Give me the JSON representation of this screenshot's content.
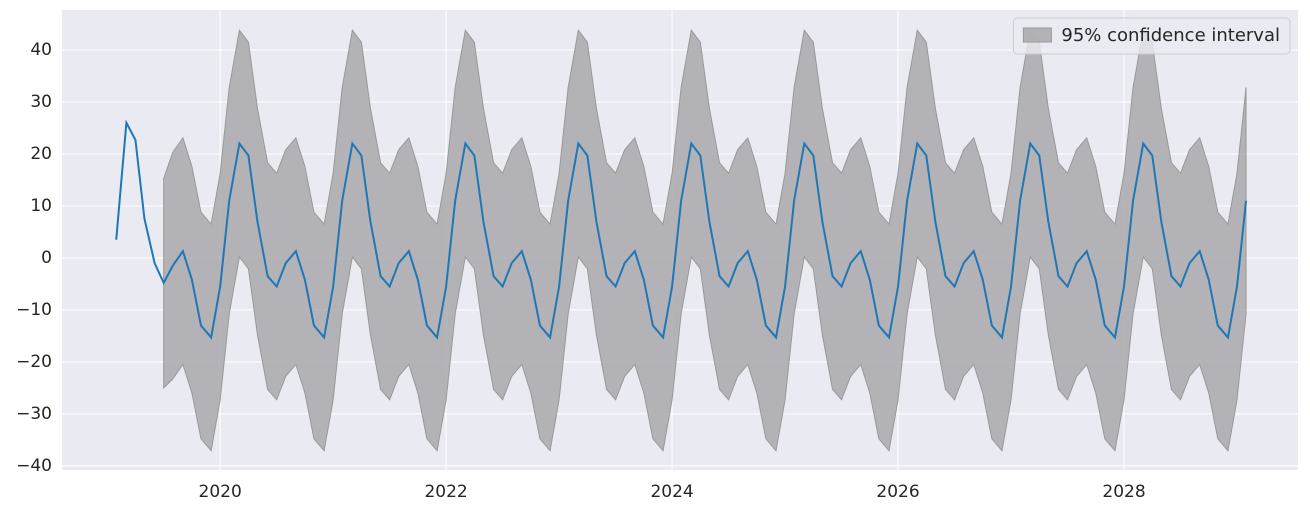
{
  "chart_data": {
    "type": "line",
    "x": [
      2019.08,
      2019.17,
      2019.25,
      2019.33,
      2019.42,
      2019.5,
      2019.58,
      2019.67,
      2019.75,
      2019.83,
      2019.92,
      2020,
      2020.08,
      2020.17,
      2020.25,
      2020.33,
      2020.42,
      2020.5,
      2020.58,
      2020.67,
      2020.75,
      2020.83,
      2020.92,
      2021,
      2021.08,
      2021.17,
      2021.25,
      2021.33,
      2021.42,
      2021.5,
      2021.58,
      2021.67,
      2021.75,
      2021.83,
      2021.92,
      2022,
      2022.08,
      2022.17,
      2022.25,
      2022.33,
      2022.42,
      2022.5,
      2022.58,
      2022.67,
      2022.75,
      2022.83,
      2022.92,
      2023,
      2023.08,
      2023.17,
      2023.25,
      2023.33,
      2023.42,
      2023.5,
      2023.58,
      2023.67,
      2023.75,
      2023.83,
      2023.92,
      2024,
      2024.08,
      2024.17,
      2024.25,
      2024.33,
      2024.42,
      2024.5,
      2024.58,
      2024.67,
      2024.75,
      2024.83,
      2024.92,
      2025,
      2025.08,
      2025.17,
      2025.25,
      2025.33,
      2025.42,
      2025.5,
      2025.58,
      2025.67,
      2025.75,
      2025.83,
      2025.92,
      2026,
      2026.08,
      2026.17,
      2026.25,
      2026.33,
      2026.42,
      2026.5,
      2026.58,
      2026.67,
      2026.75,
      2026.83,
      2026.92,
      2027,
      2027.08,
      2027.17,
      2027.25,
      2027.33,
      2027.42,
      2027.5,
      2027.58,
      2027.67,
      2027.75,
      2027.83,
      2027.92,
      2028,
      2028.08,
      2028.17,
      2028.25,
      2028.33,
      2028.42,
      2028.5,
      2028.58,
      2028.67,
      2028.75,
      2028.83,
      2028.92,
      2029,
      2029.08
    ],
    "values": [
      3.5,
      26,
      22.7,
      7.5,
      -1,
      -4.8,
      -1.5,
      1.3,
      -4.2,
      -13,
      -15.3,
      -5.5,
      11,
      22,
      19.7,
      7,
      -3.5,
      -5.5,
      -1,
      1.3,
      -4.2,
      -13,
      -15.3,
      -5.5,
      11,
      22,
      19.7,
      7,
      -3.5,
      -5.5,
      -1,
      1.3,
      -4.2,
      -13,
      -15.3,
      -5.5,
      11,
      22,
      19.7,
      7,
      -3.5,
      -5.5,
      -1,
      1.3,
      -4.2,
      -13,
      -15.3,
      -5.5,
      11,
      22,
      19.7,
      7,
      -3.5,
      -5.5,
      -1,
      1.3,
      -4.2,
      -13,
      -15.3,
      -5.5,
      11,
      22,
      19.7,
      7,
      -3.5,
      -5.5,
      -1,
      1.3,
      -4.2,
      -13,
      -15.3,
      -5.5,
      11,
      22,
      19.7,
      7,
      -3.5,
      -5.5,
      -1,
      1.3,
      -4.2,
      -13,
      -15.3,
      -5.5,
      11,
      22,
      19.7,
      7,
      -3.5,
      -5.5,
      -1,
      1.3,
      -4.2,
      -13,
      -15.3,
      -5.5,
      11,
      22,
      19.7,
      7,
      -3.5,
      -5.5,
      -1,
      1.3,
      -4.2,
      -13,
      -15.3,
      -5.5,
      11,
      22,
      19.7,
      7,
      -3.5,
      -5.5,
      -1,
      1.3,
      -4.2,
      -13,
      -15.3,
      -5.5,
      11
    ],
    "color": "#1f77b4",
    "band": {
      "name": "95% confidence interval",
      "color": "#a9a8ab",
      "lower": [
        null,
        null,
        null,
        null,
        null,
        -25,
        -23.3,
        -20.5,
        -26,
        -34.8,
        -37.1,
        -27.3,
        -10.8,
        0.2,
        -2.1,
        -14.8,
        -25.3,
        -27.3,
        -22.8,
        -20.5,
        -26,
        -34.8,
        -37.1,
        -27.3,
        -10.8,
        0.2,
        -2.1,
        -14.8,
        -25.3,
        -27.3,
        -22.8,
        -20.5,
        -26,
        -34.8,
        -37.1,
        -27.3,
        -10.8,
        0.2,
        -2.1,
        -14.8,
        -25.3,
        -27.3,
        -22.8,
        -20.5,
        -26,
        -34.8,
        -37.1,
        -27.3,
        -10.8,
        0.2,
        -2.1,
        -14.8,
        -25.3,
        -27.3,
        -22.8,
        -20.5,
        -26,
        -34.8,
        -37.1,
        -27.3,
        -10.8,
        0.2,
        -2.1,
        -14.8,
        -25.3,
        -27.3,
        -22.8,
        -20.5,
        -26,
        -34.8,
        -37.1,
        -27.3,
        -10.8,
        0.2,
        -2.1,
        -14.8,
        -25.3,
        -27.3,
        -22.8,
        -20.5,
        -26,
        -34.8,
        -37.1,
        -27.3,
        -10.8,
        0.2,
        -2.1,
        -14.8,
        -25.3,
        -27.3,
        -22.8,
        -20.5,
        -26,
        -34.8,
        -37.1,
        -27.3,
        -10.8,
        0.2,
        -2.1,
        -14.8,
        -25.3,
        -27.3,
        -22.8,
        -20.5,
        -26,
        -34.8,
        -37.1,
        -27.3,
        -10.8,
        0.2,
        -2.1,
        -14.8,
        -25.3,
        -27.3,
        -22.8,
        -20.5,
        -26,
        -34.8,
        -37.1,
        -27.3,
        -10.8
      ],
      "upper": [
        null,
        null,
        null,
        null,
        null,
        15.3,
        20.3,
        23.1,
        17.6,
        8.8,
        6.5,
        16.3,
        32.8,
        43.8,
        41.5,
        28.8,
        18.3,
        16.3,
        20.8,
        23.1,
        17.6,
        8.8,
        6.5,
        16.3,
        32.8,
        43.8,
        41.5,
        28.8,
        18.3,
        16.3,
        20.8,
        23.1,
        17.6,
        8.8,
        6.5,
        16.3,
        32.8,
        43.8,
        41.5,
        28.8,
        18.3,
        16.3,
        20.8,
        23.1,
        17.6,
        8.8,
        6.5,
        16.3,
        32.8,
        43.8,
        41.5,
        28.8,
        18.3,
        16.3,
        20.8,
        23.1,
        17.6,
        8.8,
        6.5,
        16.3,
        32.8,
        43.8,
        41.5,
        28.8,
        18.3,
        16.3,
        20.8,
        23.1,
        17.6,
        8.8,
        6.5,
        16.3,
        32.8,
        43.8,
        41.5,
        28.8,
        18.3,
        16.3,
        20.8,
        23.1,
        17.6,
        8.8,
        6.5,
        16.3,
        32.8,
        43.8,
        41.5,
        28.8,
        18.3,
        16.3,
        20.8,
        23.1,
        17.6,
        8.8,
        6.5,
        16.3,
        32.8,
        43.8,
        41.5,
        28.8,
        18.3,
        16.3,
        20.8,
        23.1,
        17.6,
        8.8,
        6.5,
        16.3,
        32.8,
        43.8,
        41.5,
        28.8,
        18.3,
        16.3,
        20.8,
        23.1,
        17.6,
        8.8,
        6.5,
        16.3,
        32.8
      ]
    },
    "xlim": [
      2018.6,
      2029.54
    ],
    "xticks": [
      2020,
      2022,
      2024,
      2026,
      2028
    ],
    "ylim": [
      -40.8,
      47.7
    ],
    "yticks": [
      {
        "value": -40,
        "label": "−40"
      },
      {
        "value": -30,
        "label": "−30"
      },
      {
        "value": -20,
        "label": "−20"
      },
      {
        "value": -10,
        "label": "−10"
      },
      0,
      10,
      20,
      30,
      40
    ],
    "grid": true,
    "legend": "upper right"
  }
}
